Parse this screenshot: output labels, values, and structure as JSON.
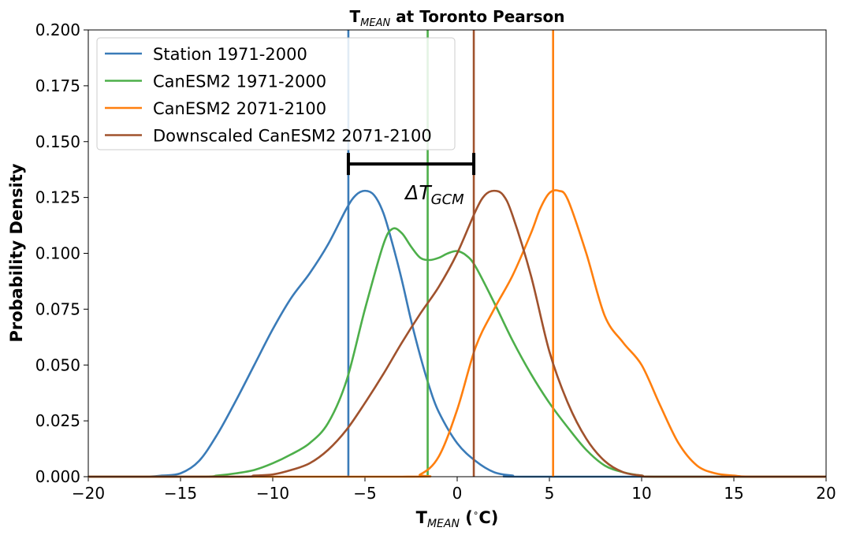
{
  "chart_data": {
    "type": "line",
    "title": "T",
    "title_sub": "MEAN",
    "title_rest": " at Toronto Pearson",
    "xlabel": "T",
    "xlabel_sub": "MEAN",
    "xlabel_rest": " (",
    "xlabel_sup": "∘",
    "xlabel_end": "C)",
    "ylabel": "Probability Density",
    "xlim": [
      -20,
      20
    ],
    "ylim": [
      0,
      0.2
    ],
    "xticks": [
      -20,
      -15,
      -10,
      -5,
      0,
      5,
      10,
      15,
      20
    ],
    "xtick_labels": [
      "−20",
      "−15",
      "−10",
      "−5",
      "0",
      "5",
      "10",
      "15",
      "20"
    ],
    "yticks": [
      0,
      0.025,
      0.05,
      0.075,
      0.1,
      0.125,
      0.15,
      0.175,
      0.2
    ],
    "ytick_labels": [
      "0.000",
      "0.025",
      "0.050",
      "0.075",
      "0.100",
      "0.125",
      "0.150",
      "0.175",
      "0.200"
    ],
    "legend_position": "top-left",
    "grid": false,
    "series": [
      {
        "name": "Station 1971-2000",
        "color": "#3a7bb8",
        "mean": -5.9,
        "x": [
          -20,
          -17,
          -16,
          -15,
          -14,
          -13,
          -12,
          -11,
          -10,
          -9,
          -8,
          -7,
          -6,
          -5.5,
          -5,
          -4.5,
          -4,
          -3.5,
          -3,
          -2.5,
          -2,
          -1.5,
          -1,
          0,
          1,
          2,
          3,
          4,
          20
        ],
        "y": [
          0,
          0,
          0.0005,
          0.0015,
          0.007,
          0.019,
          0.034,
          0.05,
          0.066,
          0.08,
          0.091,
          0.104,
          0.12,
          0.126,
          0.128,
          0.126,
          0.118,
          0.104,
          0.088,
          0.07,
          0.054,
          0.04,
          0.029,
          0.015,
          0.007,
          0.002,
          0.0005,
          0,
          0
        ]
      },
      {
        "name": "CanESM2 1971-2000",
        "color": "#4daf4a",
        "mean": -1.6,
        "x": [
          -20,
          -14,
          -13,
          -12,
          -11,
          -10,
          -9,
          -8,
          -7,
          -6,
          -5,
          -4,
          -3.5,
          -3,
          -2.5,
          -2,
          -1.5,
          -1,
          -0.5,
          0,
          0.5,
          1,
          2,
          3,
          4,
          5,
          6,
          7,
          8,
          9,
          10,
          11,
          20
        ],
        "y": [
          0,
          0,
          0.0005,
          0.0015,
          0.003,
          0.006,
          0.01,
          0.015,
          0.024,
          0.043,
          0.075,
          0.104,
          0.111,
          0.109,
          0.103,
          0.098,
          0.097,
          0.098,
          0.1,
          0.101,
          0.099,
          0.094,
          0.078,
          0.061,
          0.046,
          0.033,
          0.022,
          0.012,
          0.005,
          0.002,
          0.0005,
          0,
          0
        ]
      },
      {
        "name": "CanESM2 2071-2100",
        "color": "#ff7f0e",
        "mean": 5.2,
        "x": [
          -20,
          -3,
          -2,
          -1,
          0,
          1,
          2,
          3,
          4,
          4.5,
          5,
          5.5,
          6,
          7,
          8,
          9,
          10,
          11,
          12,
          13,
          14,
          15,
          16,
          20
        ],
        "y": [
          0,
          0,
          0.001,
          0.009,
          0.03,
          0.058,
          0.075,
          0.09,
          0.109,
          0.12,
          0.127,
          0.128,
          0.124,
          0.1,
          0.072,
          0.06,
          0.05,
          0.032,
          0.015,
          0.005,
          0.0015,
          0.0005,
          0,
          0
        ]
      },
      {
        "name": "Downscaled CanESM2 2071-2100",
        "color": "#a0522d",
        "mean": 0.9,
        "x": [
          -20,
          -12,
          -11,
          -10,
          -9,
          -8,
          -7,
          -6,
          -5,
          -4,
          -3,
          -2,
          -1,
          0,
          1,
          1.5,
          2,
          2.5,
          3,
          4,
          5,
          6,
          7,
          8,
          9,
          10,
          11,
          20
        ],
        "y": [
          0,
          0,
          0.0005,
          0.001,
          0.003,
          0.006,
          0.012,
          0.021,
          0.033,
          0.046,
          0.06,
          0.073,
          0.085,
          0.1,
          0.119,
          0.126,
          0.128,
          0.126,
          0.117,
          0.09,
          0.056,
          0.033,
          0.017,
          0.007,
          0.002,
          0.0005,
          0,
          0
        ]
      }
    ],
    "annotation": {
      "symbol": "ΔT",
      "sub": "GCM",
      "bracket_x": [
        -5.9,
        0.9
      ],
      "bracket_y": 0.14,
      "bracket_color": "#000000"
    }
  }
}
